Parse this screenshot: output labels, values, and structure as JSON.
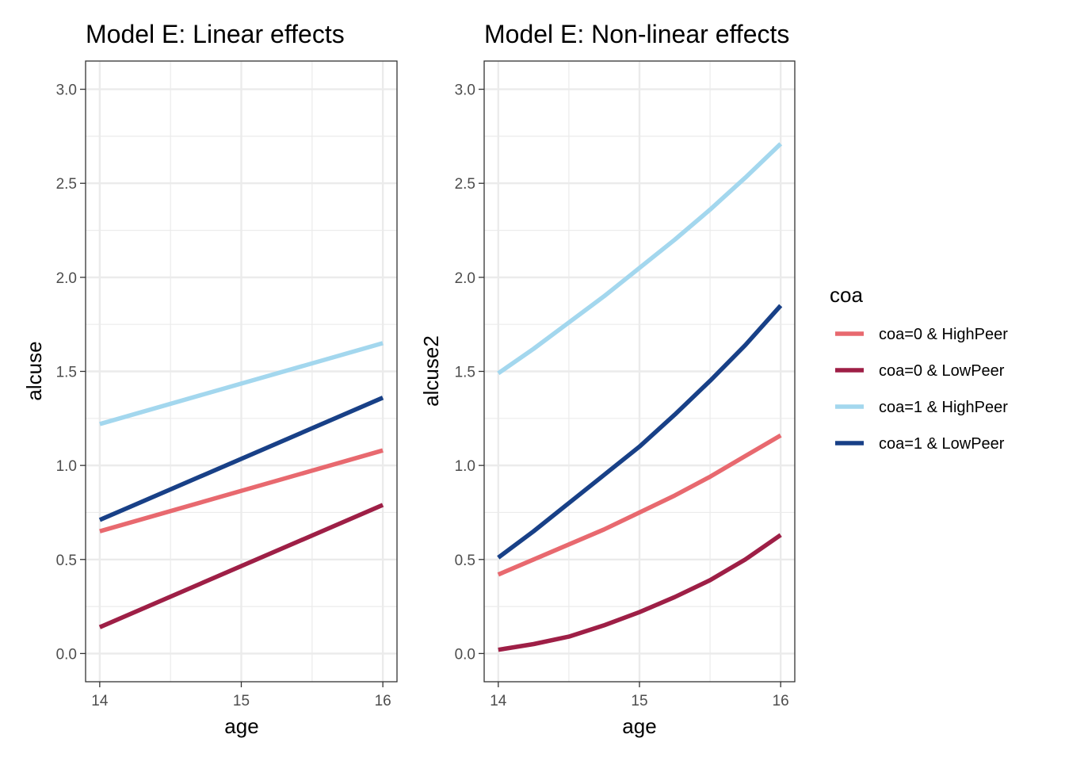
{
  "chart_data": [
    {
      "type": "line",
      "title": "Model E: Linear effects",
      "xlabel": "age",
      "ylabel": "alcuse",
      "xlim": [
        13.9,
        16.1
      ],
      "ylim": [
        -0.15,
        3.15
      ],
      "x_ticks": [
        "14",
        "15",
        "16"
      ],
      "y_ticks": [
        "0.0",
        "0.5",
        "1.0",
        "1.5",
        "2.0",
        "2.5",
        "3.0"
      ],
      "grid": true,
      "series": [
        {
          "name": "coa=0 & HighPeer",
          "x": [
            14,
            16
          ],
          "values": [
            0.65,
            1.08
          ]
        },
        {
          "name": "coa=0 & LowPeer",
          "x": [
            14,
            16
          ],
          "values": [
            0.14,
            0.79
          ]
        },
        {
          "name": "coa=1 & HighPeer",
          "x": [
            14,
            16
          ],
          "values": [
            1.22,
            1.65
          ]
        },
        {
          "name": "coa=1 & LowPeer",
          "x": [
            14,
            16
          ],
          "values": [
            0.71,
            1.36
          ]
        }
      ]
    },
    {
      "type": "line",
      "title": "Model E: Non-linear effects",
      "xlabel": "age",
      "ylabel": "alcuse2",
      "xlim": [
        13.9,
        16.1
      ],
      "ylim": [
        -0.15,
        3.15
      ],
      "x_ticks": [
        "14",
        "15",
        "16"
      ],
      "y_ticks": [
        "0.0",
        "0.5",
        "1.0",
        "1.5",
        "2.0",
        "2.5",
        "3.0"
      ],
      "grid": true,
      "series": [
        {
          "name": "coa=0 & HighPeer",
          "x": [
            14,
            14.25,
            14.5,
            14.75,
            15,
            15.25,
            15.5,
            15.75,
            16
          ],
          "values": [
            0.42,
            0.5,
            0.58,
            0.66,
            0.75,
            0.84,
            0.94,
            1.05,
            1.16
          ]
        },
        {
          "name": "coa=0 & LowPeer",
          "x": [
            14,
            14.25,
            14.5,
            14.75,
            15,
            15.25,
            15.5,
            15.75,
            16
          ],
          "values": [
            0.02,
            0.05,
            0.09,
            0.15,
            0.22,
            0.3,
            0.39,
            0.5,
            0.63
          ]
        },
        {
          "name": "coa=1 & HighPeer",
          "x": [
            14,
            14.25,
            14.5,
            14.75,
            15,
            15.25,
            15.5,
            15.75,
            16
          ],
          "values": [
            1.49,
            1.62,
            1.76,
            1.9,
            2.05,
            2.2,
            2.36,
            2.53,
            2.71
          ]
        },
        {
          "name": "coa=1 & LowPeer",
          "x": [
            14,
            14.25,
            14.5,
            14.75,
            15,
            15.25,
            15.5,
            15.75,
            16
          ],
          "values": [
            0.51,
            0.65,
            0.8,
            0.95,
            1.1,
            1.27,
            1.45,
            1.64,
            1.85
          ]
        }
      ]
    }
  ],
  "legend": {
    "title": "coa",
    "position": "right",
    "items": [
      {
        "label": "coa=0 & HighPeer",
        "color": "#E8696F"
      },
      {
        "label": "coa=0 & LowPeer",
        "color": "#9E1F46"
      },
      {
        "label": "coa=1 & HighPeer",
        "color": "#A3D7EE"
      },
      {
        "label": "coa=1 & LowPeer",
        "color": "#184087"
      }
    ]
  }
}
